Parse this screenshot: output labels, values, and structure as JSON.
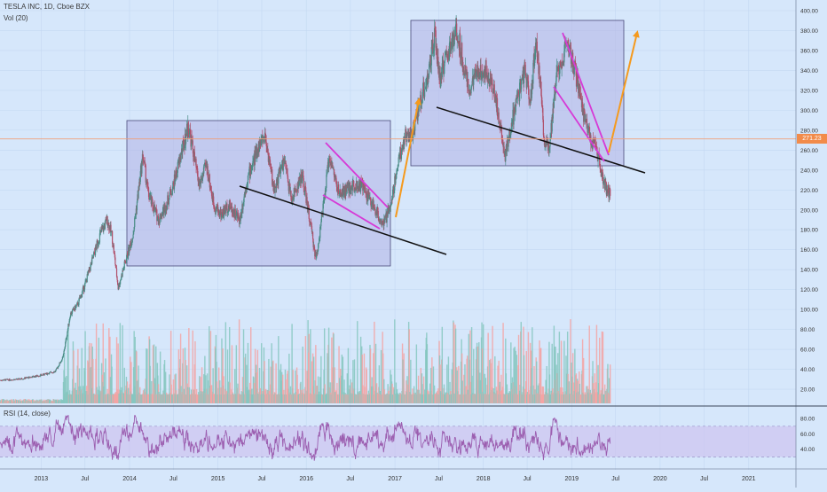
{
  "header": {
    "symbol_line": "TESLA INC, 1D, Cboe BZX",
    "volume_label": "Vol (20)",
    "rsi_label": "RSI (14, close)"
  },
  "colors": {
    "background": "#d6e7fb",
    "grid": "#c4d8f2",
    "box_fill": "#b3b3e6",
    "box_stroke": "#4a4a7a",
    "trendline": "#111111",
    "wedge": "#d63ad6",
    "arrow": "#f59a1e",
    "candle_up": "#4a8c86",
    "candle_down": "#b0506a",
    "volume_up": "#86c7bf",
    "volume_down": "#f3a3a3",
    "rsi_line": "#9c5fb0",
    "rsi_band": "#cdc3f0",
    "price_line": "#f0a07a",
    "price_badge": "#f28b4a"
  },
  "chart_data": {
    "type": "line",
    "series_note": "Daily candlesticks with volume and RSI panes",
    "price_axis": {
      "ylim": [
        -4,
        400
      ],
      "ticks": [
        "400.00",
        "380.00",
        "360.00",
        "340.00",
        "320.00",
        "300.00",
        "280.00",
        "260.00",
        "240.00",
        "220.00",
        "200.00",
        "180.00",
        "160.00",
        "140.00",
        "120.00",
        "100.00",
        "80.00",
        "60.00",
        "40.00",
        "20.00"
      ]
    },
    "last_price": "271.23",
    "last_price_value": 271.23,
    "x_axis": {
      "xlim": [
        "2012-07-15",
        "2021-07-15"
      ],
      "ticks": [
        {
          "label": "2013",
          "date": "2013-01-01"
        },
        {
          "label": "Jul",
          "date": "2013-07-01"
        },
        {
          "label": "2014",
          "date": "2014-01-01"
        },
        {
          "label": "Jul",
          "date": "2014-07-01"
        },
        {
          "label": "2015",
          "date": "2015-01-01"
        },
        {
          "label": "Jul",
          "date": "2015-07-01"
        },
        {
          "label": "2016",
          "date": "2016-01-01"
        },
        {
          "label": "Jul",
          "date": "2016-07-01"
        },
        {
          "label": "2017",
          "date": "2017-01-01"
        },
        {
          "label": "Jul",
          "date": "2017-07-01"
        },
        {
          "label": "2018",
          "date": "2018-01-01"
        },
        {
          "label": "Jul",
          "date": "2018-07-01"
        },
        {
          "label": "2019",
          "date": "2019-01-01"
        },
        {
          "label": "Jul",
          "date": "2019-07-01"
        },
        {
          "label": "2020",
          "date": "2020-01-01"
        },
        {
          "label": "Jul",
          "date": "2020-07-01"
        },
        {
          "label": "2021",
          "date": "2021-01-01"
        }
      ]
    },
    "price_path": [
      [
        "2012-07-15",
        29
      ],
      [
        "2012-10-01",
        30
      ],
      [
        "2013-01-01",
        34
      ],
      [
        "2013-03-01",
        38
      ],
      [
        "2013-04-01",
        52
      ],
      [
        "2013-05-01",
        95
      ],
      [
        "2013-06-01",
        105
      ],
      [
        "2013-07-01",
        125
      ],
      [
        "2013-08-01",
        150
      ],
      [
        "2013-09-01",
        175
      ],
      [
        "2013-10-01",
        190
      ],
      [
        "2013-10-20",
        175
      ],
      [
        "2013-11-15",
        122
      ],
      [
        "2013-12-15",
        148
      ],
      [
        "2014-01-15",
        175
      ],
      [
        "2014-02-25",
        255
      ],
      [
        "2014-03-20",
        215
      ],
      [
        "2014-05-01",
        190
      ],
      [
        "2014-06-01",
        205
      ],
      [
        "2014-07-01",
        225
      ],
      [
        "2014-09-01",
        285
      ],
      [
        "2014-10-15",
        225
      ],
      [
        "2014-11-15",
        245
      ],
      [
        "2014-12-15",
        205
      ],
      [
        "2015-01-15",
        195
      ],
      [
        "2015-02-15",
        205
      ],
      [
        "2015-04-01",
        190
      ],
      [
        "2015-05-01",
        230
      ],
      [
        "2015-06-20",
        265
      ],
      [
        "2015-07-15",
        275
      ],
      [
        "2015-08-20",
        220
      ],
      [
        "2015-10-01",
        250
      ],
      [
        "2015-11-01",
        210
      ],
      [
        "2015-12-15",
        235
      ],
      [
        "2016-01-15",
        190
      ],
      [
        "2016-02-10",
        150
      ],
      [
        "2016-03-15",
        210
      ],
      [
        "2016-04-05",
        255
      ],
      [
        "2016-05-15",
        215
      ],
      [
        "2016-06-15",
        220
      ],
      [
        "2016-07-15",
        225
      ],
      [
        "2016-08-15",
        225
      ],
      [
        "2016-10-01",
        205
      ],
      [
        "2016-11-15",
        185
      ],
      [
        "2016-12-15",
        205
      ],
      [
        "2017-01-15",
        250
      ],
      [
        "2017-02-15",
        275
      ],
      [
        "2017-03-15",
        275
      ],
      [
        "2017-04-15",
        310
      ],
      [
        "2017-05-15",
        330
      ],
      [
        "2017-06-15",
        375
      ],
      [
        "2017-07-05",
        330
      ],
      [
        "2017-07-20",
        345
      ],
      [
        "2017-09-15",
        380
      ],
      [
        "2017-11-01",
        320
      ],
      [
        "2017-12-15",
        340
      ],
      [
        "2018-01-15",
        340
      ],
      [
        "2018-02-15",
        320
      ],
      [
        "2018-04-01",
        255
      ],
      [
        "2018-05-01",
        290
      ],
      [
        "2018-06-20",
        340
      ],
      [
        "2018-07-15",
        310
      ],
      [
        "2018-08-07",
        375
      ],
      [
        "2018-09-10",
        270
      ],
      [
        "2018-10-01",
        265
      ],
      [
        "2018-11-01",
        340
      ],
      [
        "2018-12-15",
        365
      ],
      [
        "2019-01-15",
        340
      ],
      [
        "2019-02-15",
        300
      ],
      [
        "2019-03-15",
        275
      ],
      [
        "2019-04-20",
        255
      ],
      [
        "2019-05-15",
        225
      ],
      [
        "2019-06-10",
        215
      ]
    ],
    "rsi_axis": {
      "ylim": [
        20,
        86
      ],
      "ticks": [
        "80.00",
        "60.00",
        "40.00"
      ],
      "band": [
        30,
        70
      ]
    }
  }
}
